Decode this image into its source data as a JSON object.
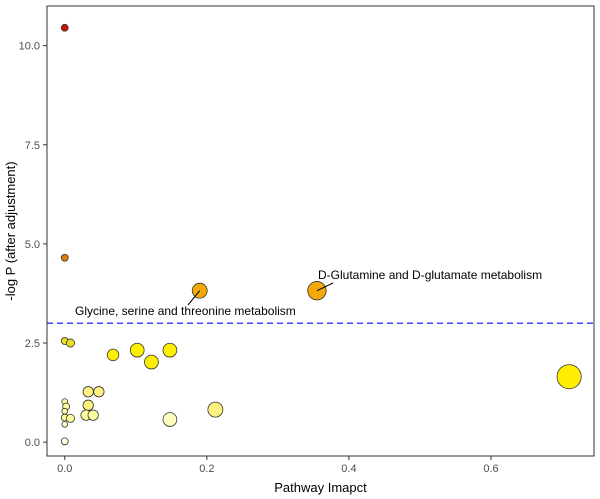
{
  "chart_data": {
    "type": "scatter",
    "title": "",
    "xlabel": "Pathway Imapct",
    "ylabel": "-log P (after adjustment)",
    "xlim": [
      -0.025,
      0.745
    ],
    "ylim": [
      -0.35,
      11.0
    ],
    "x_ticks": [
      {
        "value": 0.0,
        "label": "0.0"
      },
      {
        "value": 0.2,
        "label": "0.2"
      },
      {
        "value": 0.4,
        "label": "0.4"
      },
      {
        "value": 0.6,
        "label": "0.6"
      }
    ],
    "y_ticks": [
      {
        "value": 0.0,
        "label": "0.0"
      },
      {
        "value": 2.5,
        "label": "2.5"
      },
      {
        "value": 5.0,
        "label": "5.0"
      },
      {
        "value": 7.5,
        "label": "7.5"
      },
      {
        "value": 10.0,
        "label": "10.0"
      }
    ],
    "grid": false,
    "threshold": {
      "value": 3.0,
      "color": "#3333ff",
      "style": "dashed"
    },
    "points": [
      {
        "x": 0.0,
        "y": 10.45,
        "size": 2.5,
        "color": "#cc1100"
      },
      {
        "x": 0.0,
        "y": 4.65,
        "size": 2.5,
        "color": "#e08010"
      },
      {
        "x": 0.19,
        "y": 3.82,
        "size": 6,
        "color": "#f5a80a"
      },
      {
        "x": 0.355,
        "y": 3.82,
        "size": 7.5,
        "color": "#f5a80a"
      },
      {
        "x": 0.0,
        "y": 2.55,
        "size": 2.5,
        "color": "#e8e020"
      },
      {
        "x": 0.008,
        "y": 2.5,
        "size": 3,
        "color": "#e8e020"
      },
      {
        "x": 0.068,
        "y": 2.2,
        "size": 4.5,
        "color": "#ffee00"
      },
      {
        "x": 0.102,
        "y": 2.32,
        "size": 5.5,
        "color": "#ffee00"
      },
      {
        "x": 0.148,
        "y": 2.32,
        "size": 5.5,
        "color": "#ffee00"
      },
      {
        "x": 0.122,
        "y": 2.02,
        "size": 5.5,
        "color": "#ffee00"
      },
      {
        "x": 0.71,
        "y": 1.65,
        "size": 10,
        "color": "#ffee00"
      },
      {
        "x": 0.033,
        "y": 1.27,
        "size": 4,
        "color": "#fff080"
      },
      {
        "x": 0.048,
        "y": 1.27,
        "size": 4,
        "color": "#fff080"
      },
      {
        "x": 0.033,
        "y": 0.93,
        "size": 4,
        "color": "#fff080"
      },
      {
        "x": 0.212,
        "y": 0.82,
        "size": 6,
        "color": "#fff080"
      },
      {
        "x": 0.0,
        "y": 1.02,
        "size": 2,
        "color": "#ffffa0"
      },
      {
        "x": 0.002,
        "y": 0.9,
        "size": 2.5,
        "color": "#ffffa0"
      },
      {
        "x": 0.0,
        "y": 0.78,
        "size": 2,
        "color": "#ffffa0"
      },
      {
        "x": 0.0,
        "y": 0.62,
        "size": 2.5,
        "color": "#ffffa0"
      },
      {
        "x": 0.008,
        "y": 0.6,
        "size": 3,
        "color": "#ffffa0"
      },
      {
        "x": 0.03,
        "y": 0.68,
        "size": 4,
        "color": "#ffffa0"
      },
      {
        "x": 0.04,
        "y": 0.68,
        "size": 4,
        "color": "#ffffa0"
      },
      {
        "x": 0.0,
        "y": 0.45,
        "size": 2,
        "color": "#ffffc0"
      },
      {
        "x": 0.148,
        "y": 0.57,
        "size": 5.5,
        "color": "#ffffc0"
      },
      {
        "x": 0.0,
        "y": 0.02,
        "size": 2.5,
        "color": "#ffffe0"
      }
    ],
    "annotations": [
      {
        "text": "D-Glutamine and D-glutamate metabolism",
        "point_index": 3
      },
      {
        "text": "Glycine, serine and threonine metabolism",
        "point_index": 2
      }
    ]
  }
}
